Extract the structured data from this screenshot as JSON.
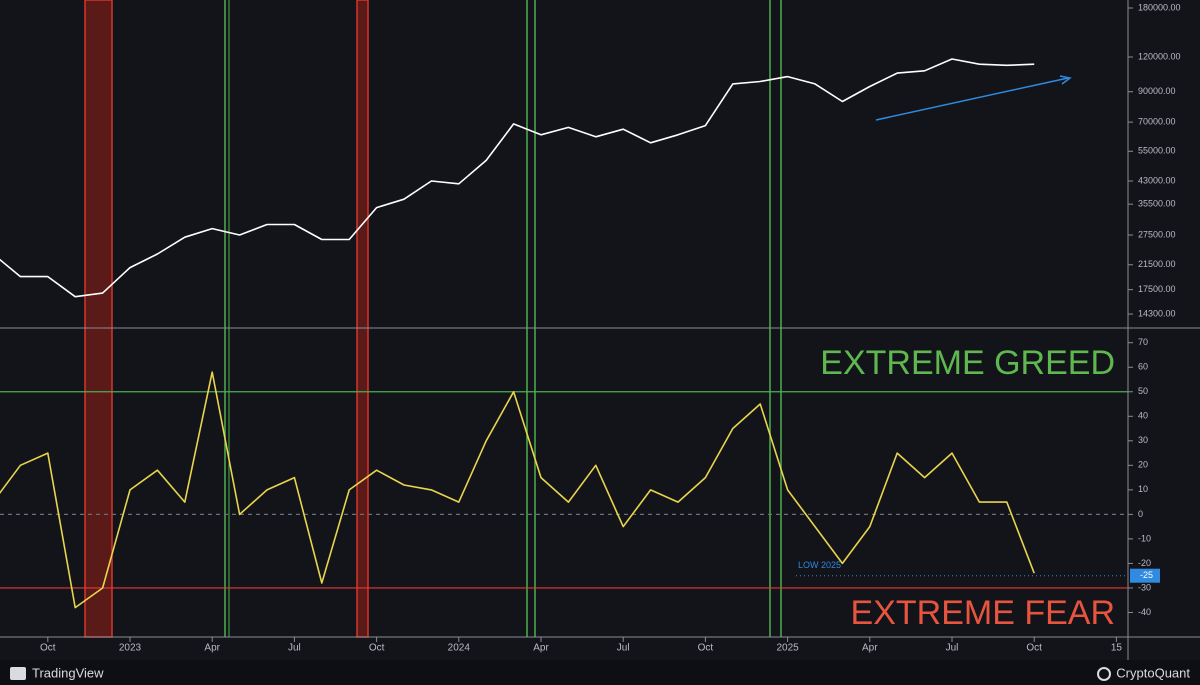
{
  "chart_data": [
    {
      "type": "line",
      "log_scale": true,
      "x": [
        "2022-08",
        "2022-09",
        "2022-10",
        "2022-11",
        "2022-12",
        "2023-01",
        "2023-02",
        "2023-03",
        "2023-04",
        "2023-05",
        "2023-06",
        "2023-07",
        "2023-08",
        "2023-09",
        "2023-10",
        "2023-11",
        "2023-12",
        "2024-01",
        "2024-02",
        "2024-03",
        "2024-04",
        "2024-05",
        "2024-06",
        "2024-07",
        "2024-08",
        "2024-09",
        "2024-10",
        "2024-11",
        "2024-12",
        "2025-01",
        "2025-02",
        "2025-03",
        "2025-04",
        "2025-05",
        "2025-06",
        "2025-07",
        "2025-08",
        "2025-09",
        "2025-10"
      ],
      "series": [
        {
          "color": "#ffffff",
          "values": [
            23500,
            19500,
            19500,
            16500,
            17000,
            21000,
            23500,
            27000,
            29000,
            27500,
            30000,
            30000,
            26500,
            26500,
            34500,
            37000,
            43000,
            42000,
            51000,
            69000,
            63000,
            67000,
            62000,
            66000,
            59000,
            63000,
            68000,
            96000,
            98000,
            102000,
            96000,
            83000,
            94000,
            105000,
            107000,
            118000,
            113000,
            112000,
            113000
          ]
        }
      ],
      "xlim": [
        "2022-08",
        "2026-02"
      ],
      "ylim": [
        12740,
        192300
      ],
      "yticks": [
        {
          "value": 14300,
          "label": "14300.00"
        },
        {
          "value": 17500,
          "label": "17500.00"
        },
        {
          "value": 21500,
          "label": "21500.00"
        },
        {
          "value": 27500,
          "label": "27500.00"
        },
        {
          "value": 35500,
          "label": "35500.00"
        },
        {
          "value": 43000,
          "label": "43000.00"
        },
        {
          "value": 55000,
          "label": "55000.00"
        },
        {
          "value": 70000,
          "label": "70000.00"
        },
        {
          "value": 90000,
          "label": "90000.00"
        },
        {
          "value": 120000,
          "label": "120000.00"
        },
        {
          "value": 180000,
          "label": "180000.00"
        }
      ]
    },
    {
      "type": "line",
      "x": [
        "2022-08",
        "2022-09",
        "2022-10",
        "2022-11",
        "2022-12",
        "2023-01",
        "2023-02",
        "2023-03",
        "2023-04",
        "2023-05",
        "2023-06",
        "2023-07",
        "2023-08",
        "2023-09",
        "2023-10",
        "2023-11",
        "2023-12",
        "2024-01",
        "2024-02",
        "2024-03",
        "2024-04",
        "2024-05",
        "2024-06",
        "2024-07",
        "2024-08",
        "2024-09",
        "2024-10",
        "2024-11",
        "2024-12",
        "2025-01",
        "2025-02",
        "2025-03",
        "2025-04",
        "2025-05",
        "2025-06",
        "2025-07",
        "2025-08",
        "2025-09",
        "2025-10"
      ],
      "series": [
        {
          "color": "#e8d44d",
          "values": [
            5,
            20,
            25,
            -38,
            -30,
            10,
            18,
            5,
            58,
            0,
            10,
            15,
            -28,
            10,
            18,
            12,
            10,
            5,
            30,
            50,
            15,
            5,
            20,
            -5,
            10,
            5,
            15,
            35,
            45,
            10,
            -5,
            -20,
            -5,
            25,
            15,
            25,
            5,
            5,
            -24
          ]
        }
      ],
      "xlim": [
        "2022-08",
        "2026-02"
      ],
      "ylim": [
        -50,
        76
      ],
      "yticks": [
        -40,
        -30,
        -20,
        -10,
        0,
        10,
        20,
        30,
        40,
        50,
        60,
        70
      ],
      "xticks": [
        {
          "value": "2022-10",
          "label": "Oct"
        },
        {
          "value": "2023-01",
          "label": "2023"
        },
        {
          "value": "2023-04",
          "label": "Apr"
        },
        {
          "value": "2023-07",
          "label": "Jul"
        },
        {
          "value": "2023-10",
          "label": "Oct"
        },
        {
          "value": "2024-01",
          "label": "2024"
        },
        {
          "value": "2024-04",
          "label": "Apr"
        },
        {
          "value": "2024-07",
          "label": "Jul"
        },
        {
          "value": "2024-10",
          "label": "Oct"
        },
        {
          "value": "2025-01",
          "label": "2025"
        },
        {
          "value": "2025-04",
          "label": "Apr"
        },
        {
          "value": "2025-07",
          "label": "Jul"
        },
        {
          "value": "2025-10",
          "label": "Oct"
        },
        {
          "value": "2026-01",
          "label": "15"
        }
      ],
      "levels": [
        {
          "value": 50,
          "color": "#4caf50"
        },
        {
          "value": -30,
          "color": "#e53935"
        },
        {
          "value": 0,
          "color": "#6b6f78"
        }
      ],
      "low_line": {
        "value": -25,
        "label": "LOW 2025",
        "color": "#2f8ae0"
      },
      "annotations": [
        {
          "text": "EXTREME GREED",
          "color": "#5fb84f"
        },
        {
          "text": "EXTREME  FEAR",
          "color": "#e8553f"
        }
      ]
    }
  ],
  "footer": {
    "left": "TradingView",
    "right": "CryptoQuant"
  }
}
